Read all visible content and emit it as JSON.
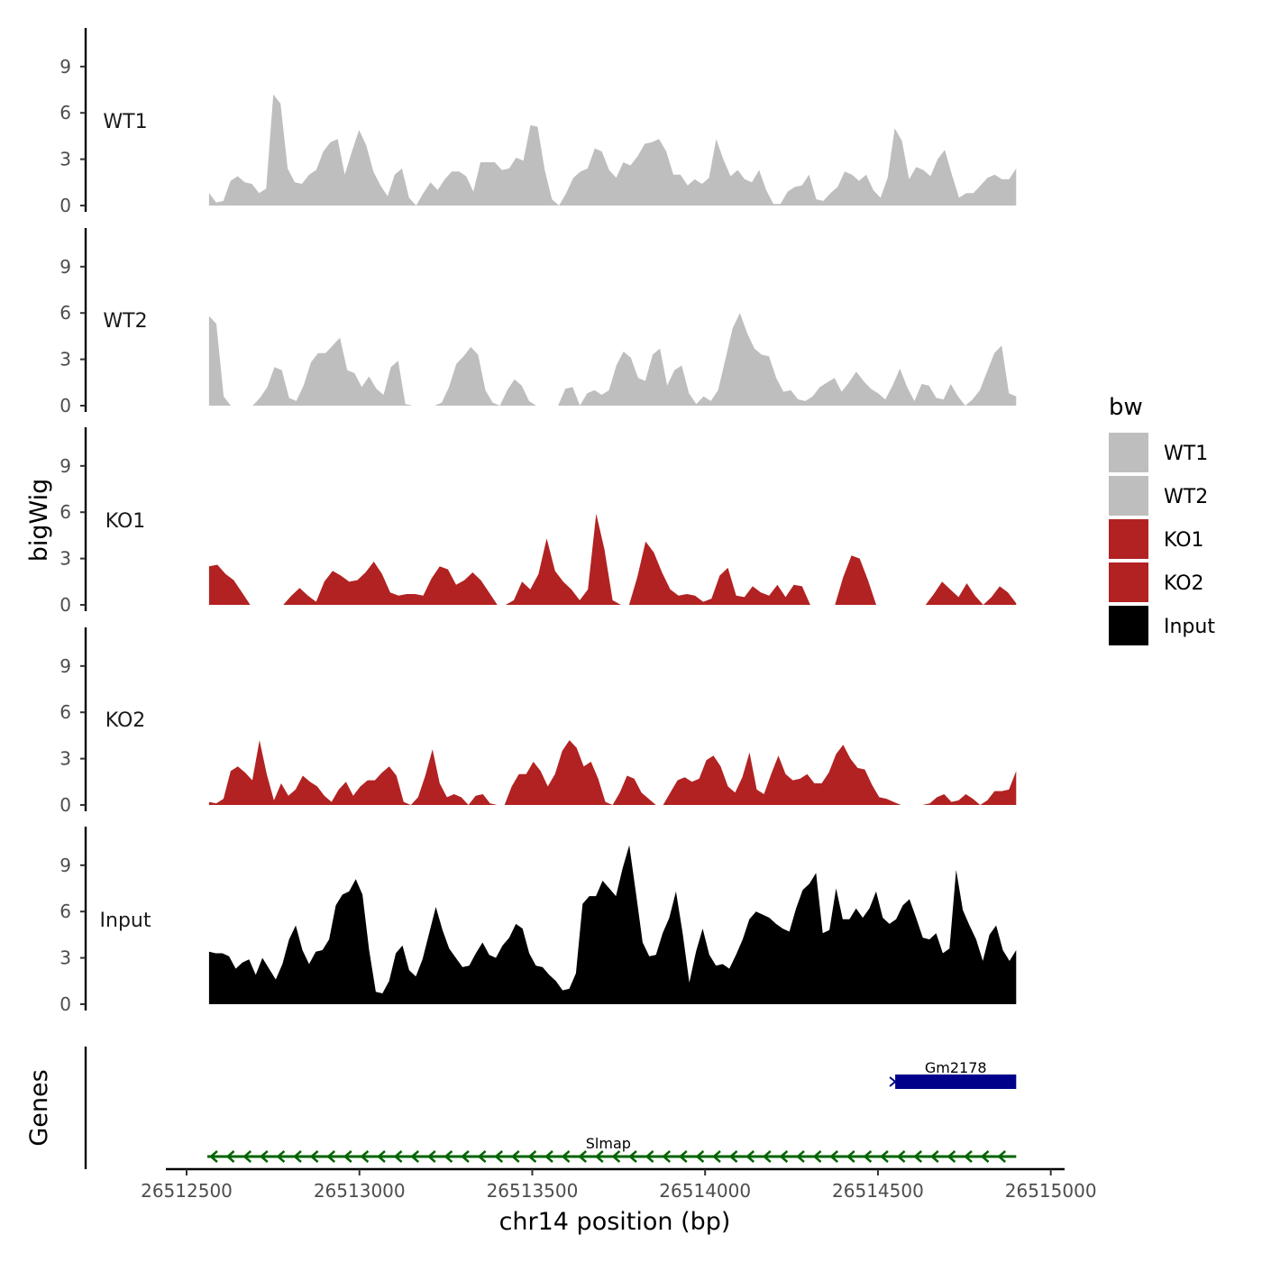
{
  "chart_data": {
    "type": "area",
    "title": "",
    "ylabel": "bigWig",
    "xlabel": "chr14 position (bp)",
    "gene_panel_label": "Genes",
    "xlim": [
      26512440,
      26515040
    ],
    "data_xrange": [
      26512565,
      26514900
    ],
    "xticks": [
      26512500,
      26513000,
      26513500,
      26514000,
      26514500,
      26515000
    ],
    "xtick_labels": [
      "26512500",
      "26513000",
      "26513500",
      "26514000",
      "26514500",
      "26515000"
    ],
    "ylim": [
      0,
      11.5
    ],
    "yticks": [
      0,
      3,
      6,
      9
    ],
    "ytick_labels": [
      "0",
      "3",
      "6",
      "9"
    ],
    "legend": {
      "title": "bw",
      "position": "right",
      "entries": [
        {
          "label": "WT1",
          "color": "#bebebe"
        },
        {
          "label": "WT2",
          "color": "#bebebe"
        },
        {
          "label": "KO1",
          "color": "#b22222"
        },
        {
          "label": "KO2",
          "color": "#b22222"
        },
        {
          "label": "Input",
          "color": "#000000"
        }
      ]
    },
    "series": [
      {
        "name": "WT1",
        "color": "#bebebe",
        "values": [
          0.8,
          0.2,
          0.3,
          1.6,
          1.9,
          1.5,
          1.4,
          0.8,
          1.1,
          7.2,
          6.6,
          2.4,
          1.5,
          1.4,
          2.0,
          2.3,
          3.5,
          4.1,
          4.3,
          2.0,
          3.5,
          4.9,
          3.9,
          2.2,
          1.3,
          0.6,
          2.0,
          2.4,
          0.5,
          0,
          0.8,
          1.5,
          1.0,
          1.7,
          2.2,
          2.2,
          1.9,
          0.9,
          2.8,
          2.8,
          2.8,
          2.3,
          2.4,
          3.1,
          2.9,
          5.2,
          5.1,
          2.3,
          0.4,
          0,
          0.8,
          1.8,
          2.2,
          2.4,
          3.7,
          3.5,
          2.3,
          1.8,
          2.8,
          2.6,
          3.2,
          4.0,
          4.1,
          4.3,
          3.5,
          2.0,
          2.0,
          1.3,
          1.7,
          1.4,
          1.8,
          4.3,
          3.0,
          1.9,
          2.3,
          1.7,
          1.5,
          2.3,
          1.0,
          0.1,
          0.1,
          0.9,
          1.2,
          1.3,
          2.0,
          0.4,
          0.3,
          0.8,
          1.2,
          2.2,
          2.0,
          1.6,
          2.0,
          1.0,
          0.5,
          1.8,
          5.0,
          4.2,
          1.7,
          2.5,
          2.3,
          1.9,
          3.0,
          3.6,
          2.0,
          0.5,
          0.8,
          0.8,
          1.3,
          1.8,
          2.0,
          1.7,
          1.7,
          2.4
        ]
      },
      {
        "name": "WT2",
        "color": "#bebebe",
        "values": [
          5.8,
          5.3,
          0.6,
          0,
          0,
          0,
          0,
          0.5,
          1.2,
          2.5,
          2.3,
          0.5,
          0.3,
          1.3,
          2.8,
          3.4,
          3.4,
          3.9,
          4.4,
          2.3,
          2.1,
          1.2,
          1.9,
          1.1,
          0.7,
          2.5,
          2.9,
          0.1,
          0,
          0,
          0,
          0,
          0.2,
          1.2,
          2.7,
          3.2,
          3.8,
          3.3,
          1.0,
          0.2,
          0,
          1.0,
          1.7,
          1.3,
          0.3,
          0,
          0,
          0,
          0,
          1.1,
          1.2,
          0,
          0.8,
          1.0,
          0.7,
          1.0,
          2.6,
          3.5,
          3.1,
          1.8,
          1.6,
          3.3,
          3.7,
          1.3,
          2.3,
          2.6,
          0.8,
          0.1,
          0.6,
          0.3,
          1.0,
          3.0,
          5.0,
          6.0,
          4.7,
          3.7,
          3.3,
          3.2,
          1.8,
          0.9,
          1.0,
          0.4,
          0.3,
          0.6,
          1.2,
          1.5,
          1.8,
          0.9,
          1.5,
          2.2,
          1.6,
          1.1,
          0.8,
          0.4,
          1.3,
          2.4,
          1.2,
          0.3,
          1.4,
          1.3,
          0.5,
          0.4,
          1.4,
          0.6,
          0,
          0.4,
          1.0,
          2.2,
          3.4,
          3.9,
          0.8,
          0.6
        ]
      },
      {
        "name": "KO1",
        "color": "#b22222",
        "values": [
          2.5,
          2.6,
          2.0,
          1.6,
          0.8,
          0,
          0,
          0,
          0,
          0,
          0.6,
          1.1,
          0.6,
          0.2,
          1.5,
          2.2,
          1.9,
          1.5,
          1.6,
          2.1,
          2.8,
          2.0,
          0.8,
          0.6,
          0.7,
          0.7,
          0.6,
          1.7,
          2.5,
          2.3,
          1.3,
          1.6,
          2.1,
          1.6,
          0.8,
          0,
          0,
          0.3,
          1.5,
          1.0,
          2.0,
          4.3,
          2.2,
          1.5,
          1.0,
          0.3,
          1.0,
          5.9,
          3.6,
          0.3,
          0,
          0,
          1.8,
          4.1,
          3.4,
          2.1,
          1.0,
          0.6,
          0.7,
          0.6,
          0.2,
          0.4,
          1.9,
          2.4,
          0.6,
          0.5,
          1.2,
          0.8,
          0.6,
          1.3,
          0.5,
          1.3,
          1.2,
          0,
          0,
          0,
          0,
          1.8,
          3.2,
          3.0,
          1.6,
          0,
          0,
          0,
          0,
          0,
          0,
          0,
          0.7,
          1.5,
          1.0,
          0.5,
          1.4,
          0.6,
          0,
          0.5,
          1.2,
          0.8,
          0.1
        ]
      },
      {
        "name": "KO2",
        "color": "#b22222",
        "values": [
          0.2,
          0.1,
          0.4,
          2.2,
          2.5,
          2.1,
          1.6,
          4.2,
          2.0,
          0.3,
          1.4,
          0.6,
          1.0,
          1.9,
          1.5,
          1.2,
          0.6,
          0.2,
          1.0,
          1.5,
          0.6,
          1.2,
          1.6,
          1.6,
          2.1,
          2.5,
          1.9,
          0.2,
          0,
          0.5,
          1.9,
          3.6,
          1.4,
          0.5,
          0.7,
          0.5,
          0,
          0.6,
          0.7,
          0.1,
          0,
          0,
          1.2,
          2.0,
          2.0,
          2.8,
          2.2,
          1.2,
          2.0,
          3.5,
          4.2,
          3.7,
          2.5,
          2.8,
          1.7,
          0.2,
          0,
          0.8,
          1.9,
          1.7,
          0.8,
          0.4,
          0,
          0,
          0.8,
          1.6,
          1.8,
          1.5,
          1.7,
          2.9,
          3.2,
          2.5,
          1.2,
          0.8,
          1.8,
          3.4,
          1.0,
          0.7,
          2.0,
          3.2,
          2.0,
          1.6,
          1.7,
          2.0,
          1.4,
          1.4,
          2.1,
          3.3,
          3.9,
          3.0,
          2.4,
          2.3,
          1.3,
          0.5,
          0.4,
          0.2,
          0,
          0,
          0,
          0,
          0.1,
          0.5,
          0.7,
          0.2,
          0.3,
          0.7,
          0.4,
          0,
          0.3,
          0.9,
          0.9,
          1.0,
          2.2
        ]
      },
      {
        "name": "Input",
        "color": "#000000",
        "values": [
          3.4,
          3.3,
          3.3,
          3.1,
          2.3,
          2.7,
          2.9,
          1.9,
          3.0,
          2.3,
          1.6,
          2.6,
          4.2,
          5.1,
          3.5,
          2.6,
          3.4,
          3.5,
          4.2,
          6.4,
          7.1,
          7.3,
          8.1,
          7.1,
          3.5,
          0.8,
          0.7,
          1.5,
          3.3,
          3.8,
          2.2,
          1.8,
          2.9,
          4.6,
          6.3,
          4.8,
          3.6,
          3.0,
          2.4,
          2.5,
          3.3,
          4.0,
          3.2,
          3.0,
          3.8,
          4.3,
          5.2,
          4.9,
          3.3,
          2.5,
          2.4,
          1.9,
          1.5,
          0.9,
          1.0,
          2.0,
          6.5,
          7.0,
          7.0,
          8.0,
          7.5,
          7.0,
          8.8,
          10.3,
          7.2,
          4.0,
          3.1,
          3.2,
          4.6,
          5.6,
          7.3,
          4.6,
          1.4,
          3.4,
          4.9,
          3.2,
          2.5,
          2.6,
          2.3,
          3.2,
          4.2,
          5.5,
          6.0,
          5.8,
          5.6,
          5.2,
          4.9,
          4.7,
          6.2,
          7.4,
          7.8,
          8.5,
          4.6,
          4.8,
          7.5,
          5.5,
          5.5,
          6.2,
          5.6,
          6.2,
          7.3,
          5.6,
          5.2,
          5.5,
          6.4,
          6.8,
          5.6,
          4.3,
          4.2,
          4.6,
          3.3,
          3.6,
          8.7,
          6.1,
          5.1,
          4.2,
          2.8,
          4.5,
          5.1,
          3.5,
          2.8,
          3.5
        ]
      }
    ],
    "genes": [
      {
        "name": "Gm2178",
        "start": 26514550,
        "end": 26514900,
        "strand": "+",
        "color": "#00008b",
        "row": 1
      },
      {
        "name": "Slmap",
        "start": 26512560,
        "end": 26514900,
        "strand": "-",
        "color": "#006400",
        "row": 2
      }
    ]
  }
}
